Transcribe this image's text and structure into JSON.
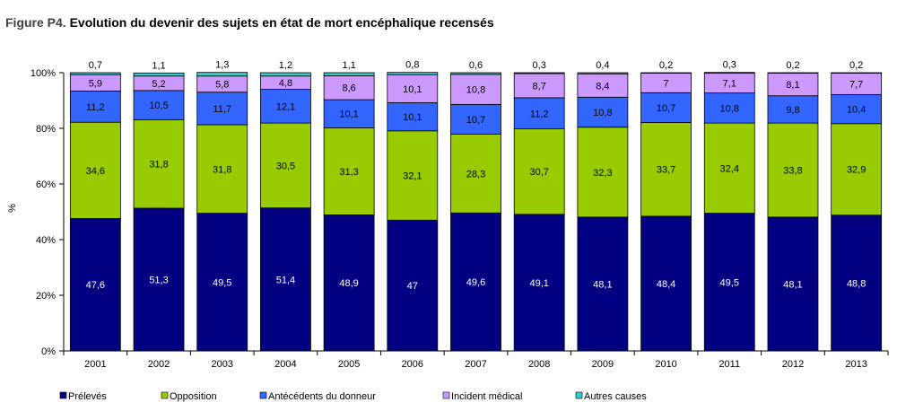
{
  "figure": {
    "number": "Figure P4.",
    "title": "Evolution du devenir des sujets en état de mort encéphalique recensés"
  },
  "chart_data": {
    "type": "bar",
    "stacked": true,
    "percent_stacked": true,
    "title": "Evolution du devenir des sujets en état de mort encéphalique recensés",
    "xlabel": "",
    "ylabel": "%",
    "ylim": [
      0,
      100
    ],
    "y_ticks": [
      "0%",
      "20%",
      "40%",
      "60%",
      "80%",
      "100%"
    ],
    "grid": false,
    "legend_position": "bottom",
    "categories": [
      "2001",
      "2002",
      "2003",
      "2004",
      "2005",
      "2006",
      "2007",
      "2008",
      "2009",
      "2010",
      "2011",
      "2012",
      "2013"
    ],
    "series": [
      {
        "name": "Prélevés",
        "color": "#000080",
        "label_color": "#ffffff",
        "values": [
          47.6,
          51.3,
          49.5,
          51.4,
          48.9,
          47,
          49.6,
          49.1,
          48.1,
          48.4,
          49.5,
          48.1,
          48.8
        ],
        "labels": [
          "47,6",
          "51,3",
          "49,5",
          "51,4",
          "48,9",
          "47",
          "49,6",
          "49,1",
          "48,1",
          "48,4",
          "49,5",
          "48,1",
          "48,8"
        ]
      },
      {
        "name": "Opposition",
        "color": "#99cc00",
        "label_color": "#000000",
        "values": [
          34.6,
          31.8,
          31.8,
          30.5,
          31.3,
          32.1,
          28.3,
          30.7,
          32.3,
          33.7,
          32.4,
          33.8,
          32.9
        ],
        "labels": [
          "34,6",
          "31,8",
          "31,8",
          "30,5",
          "31,3",
          "32,1",
          "28,3",
          "30,7",
          "32,3",
          "33,7",
          "32,4",
          "33,8",
          "32,9"
        ]
      },
      {
        "name": "Antécédents du donneur",
        "color": "#3366ff",
        "label_color": "#000000",
        "values": [
          11.2,
          10.5,
          11.7,
          12.1,
          10.1,
          10.1,
          10.7,
          11.2,
          10.8,
          10.7,
          10.8,
          9.8,
          10.4
        ],
        "labels": [
          "11,2",
          "10,5",
          "11,7",
          "12,1",
          "10,1",
          "10,1",
          "10,7",
          "11,2",
          "10,8",
          "10,7",
          "10,8",
          "9,8",
          "10,4"
        ]
      },
      {
        "name": "Incident médical",
        "color": "#cc99ff",
        "label_color": "#000000",
        "values": [
          5.9,
          5.2,
          5.8,
          4.8,
          8.6,
          10.1,
          10.8,
          8.7,
          8.4,
          7,
          7.1,
          8.1,
          7.7
        ],
        "labels": [
          "5,9",
          "5,2",
          "5,8",
          "4,8",
          "8,6",
          "10,1",
          "10,8",
          "8,7",
          "8,4",
          "7",
          "7,1",
          "8,1",
          "7,7"
        ]
      },
      {
        "name": "Autres causes",
        "color": "#33cccc",
        "label_color": "#000000",
        "values": [
          0.7,
          1.1,
          1.3,
          1.2,
          1.1,
          0.8,
          0.6,
          0.3,
          0.4,
          0.2,
          0.3,
          0.2,
          0.2
        ],
        "labels": [
          "0,7",
          "1,1",
          "1,3",
          "1,2",
          "1,1",
          "0,8",
          "0,6",
          "0,3",
          "0,4",
          "0,2",
          "0,3",
          "0,2",
          "0,2"
        ]
      }
    ]
  }
}
